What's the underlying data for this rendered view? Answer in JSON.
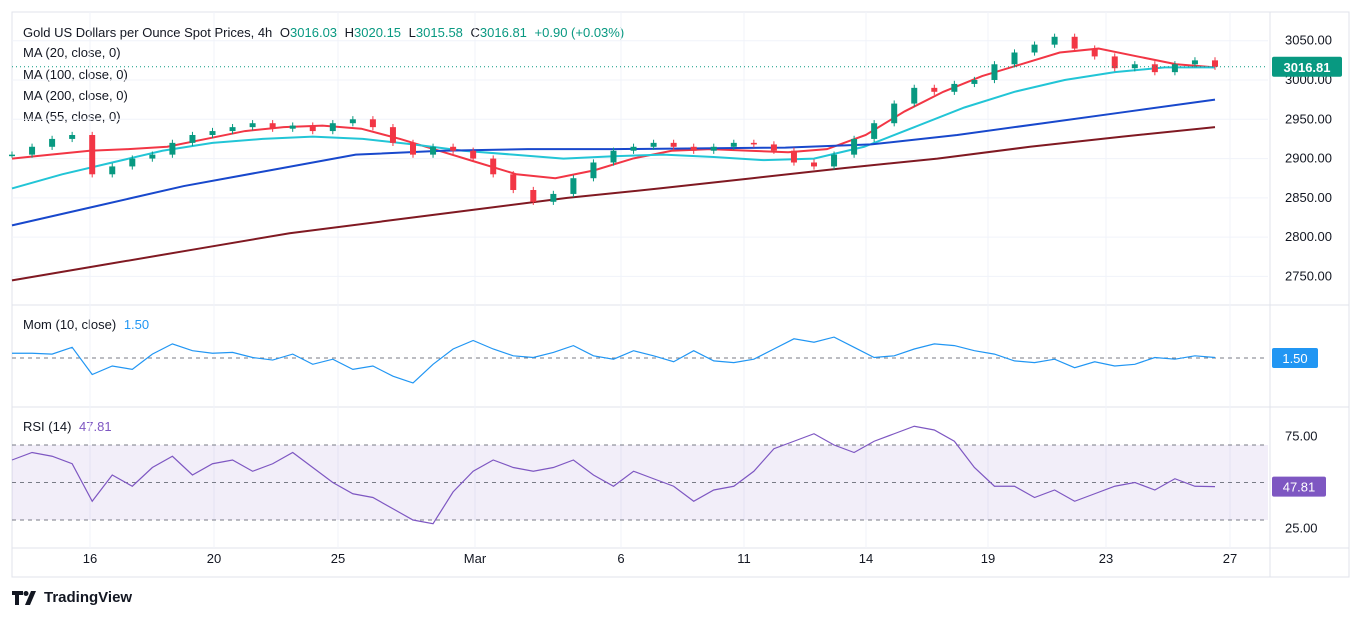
{
  "header": {
    "title": "Gold US Dollars per Ounce Spot Prices, 4h",
    "open_label": "O",
    "open": "3016.03",
    "high_label": "H",
    "high": "3020.15",
    "low_label": "L",
    "low": "3015.58",
    "close_label": "C",
    "close": "3016.81",
    "change": "+0.90 (+0.03%)"
  },
  "indicators": [
    {
      "label": "MA (20, close, 0)",
      "color": "#f23645"
    },
    {
      "label": "MA (100, close, 0)",
      "color": "#1848cc"
    },
    {
      "label": "MA (200, close, 0)",
      "color": "#801922"
    },
    {
      "label": "MA (55, close, 0)",
      "color": "#22c5d6"
    }
  ],
  "momentum": {
    "label": "Mom (10, close)",
    "value": "1.50",
    "color": "#2196f3"
  },
  "rsi": {
    "label": "RSI (14)",
    "value": "47.81",
    "color": "#7e57c2"
  },
  "branding": {
    "name": "TradingView"
  },
  "chart_data": [
    {
      "type": "candlestick",
      "title": "Gold US Dollars per Ounce Spot Prices, 4h",
      "x_ticks": [
        "16",
        "20",
        "25",
        "Mar",
        "6",
        "11",
        "14",
        "19",
        "23",
        "27"
      ],
      "y_ticks": [
        "2750.00",
        "2800.00",
        "2850.00",
        "2900.00",
        "2950.00",
        "3000.00",
        "3050.00"
      ],
      "ylim": [
        2720,
        3070
      ],
      "last_price": "3016.81",
      "close_path": [
        2905,
        2915,
        2925,
        2930,
        2880,
        2890,
        2900,
        2905,
        2920,
        2930,
        2935,
        2940,
        2945,
        2938,
        2942,
        2935,
        2945,
        2950,
        2940,
        2920,
        2905,
        2915,
        2910,
        2900,
        2880,
        2860,
        2845,
        2855,
        2875,
        2895,
        2910,
        2915,
        2920,
        2915,
        2910,
        2915,
        2920,
        2918,
        2910,
        2895,
        2890,
        2905,
        2925,
        2945,
        2970,
        2990,
        2985,
        2995,
        3000,
        3020,
        3035,
        3045,
        3055,
        3040,
        3030,
        3015,
        3020,
        3010,
        3020,
        3025,
        3016.81
      ],
      "ma_series": [
        {
          "name": "MA 20",
          "values": [
            2900,
            2905,
            2910,
            2912,
            2915,
            2925,
            2935,
            2940,
            2942,
            2938,
            2925,
            2910,
            2895,
            2880,
            2875,
            2885,
            2900,
            2910,
            2912,
            2910,
            2908,
            2912,
            2930,
            2960,
            2985,
            3005,
            3020,
            3035,
            3040,
            3030,
            3020,
            3016
          ]
        },
        {
          "name": "MA 55",
          "values": [
            2862,
            2880,
            2895,
            2910,
            2920,
            2925,
            2928,
            2925,
            2918,
            2910,
            2905,
            2900,
            2903,
            2905,
            2902,
            2898,
            2900,
            2915,
            2940,
            2965,
            2985,
            3000,
            3010,
            3016,
            3016
          ]
        },
        {
          "name": "MA 100",
          "values": [
            2815,
            2840,
            2865,
            2885,
            2905,
            2910,
            2912,
            2912,
            2913,
            2914,
            2918,
            2930,
            2945,
            2960,
            2975
          ]
        },
        {
          "name": "MA 200",
          "values": [
            2745,
            2765,
            2785,
            2805,
            2820,
            2835,
            2850,
            2862,
            2875,
            2888,
            2900,
            2915,
            2928,
            2940
          ]
        }
      ]
    },
    {
      "type": "line",
      "title": "Mom (10, close)",
      "last_value": 1.5,
      "values": [
        55,
        55,
        54,
        62,
        30,
        40,
        36,
        54,
        66,
        58,
        55,
        56,
        50,
        47,
        54,
        42,
        48,
        36,
        40,
        28,
        20,
        42,
        60,
        70,
        60,
        52,
        50,
        56,
        64,
        52,
        48,
        58,
        52,
        45,
        58,
        46,
        44,
        48,
        60,
        72,
        68,
        74,
        62,
        50,
        52,
        60,
        66,
        64,
        58,
        54,
        46,
        44,
        48,
        38,
        45,
        40,
        42,
        50,
        48,
        52,
        50
      ]
    },
    {
      "type": "line",
      "title": "RSI (14)",
      "y_ticks": [
        "25.00",
        "75.00"
      ],
      "bands": [
        30,
        50,
        70
      ],
      "last_value": 47.81,
      "values": [
        62,
        66,
        64,
        60,
        40,
        54,
        48,
        58,
        64,
        54,
        60,
        62,
        56,
        60,
        66,
        58,
        50,
        44,
        42,
        36,
        30,
        28,
        45,
        56,
        62,
        58,
        56,
        58,
        62,
        54,
        48,
        56,
        52,
        48,
        40,
        46,
        48,
        56,
        68,
        72,
        76,
        70,
        66,
        72,
        76,
        80,
        78,
        72,
        58,
        48,
        48,
        42,
        46,
        40,
        44,
        48,
        50,
        46,
        52,
        48,
        47.81
      ]
    }
  ]
}
